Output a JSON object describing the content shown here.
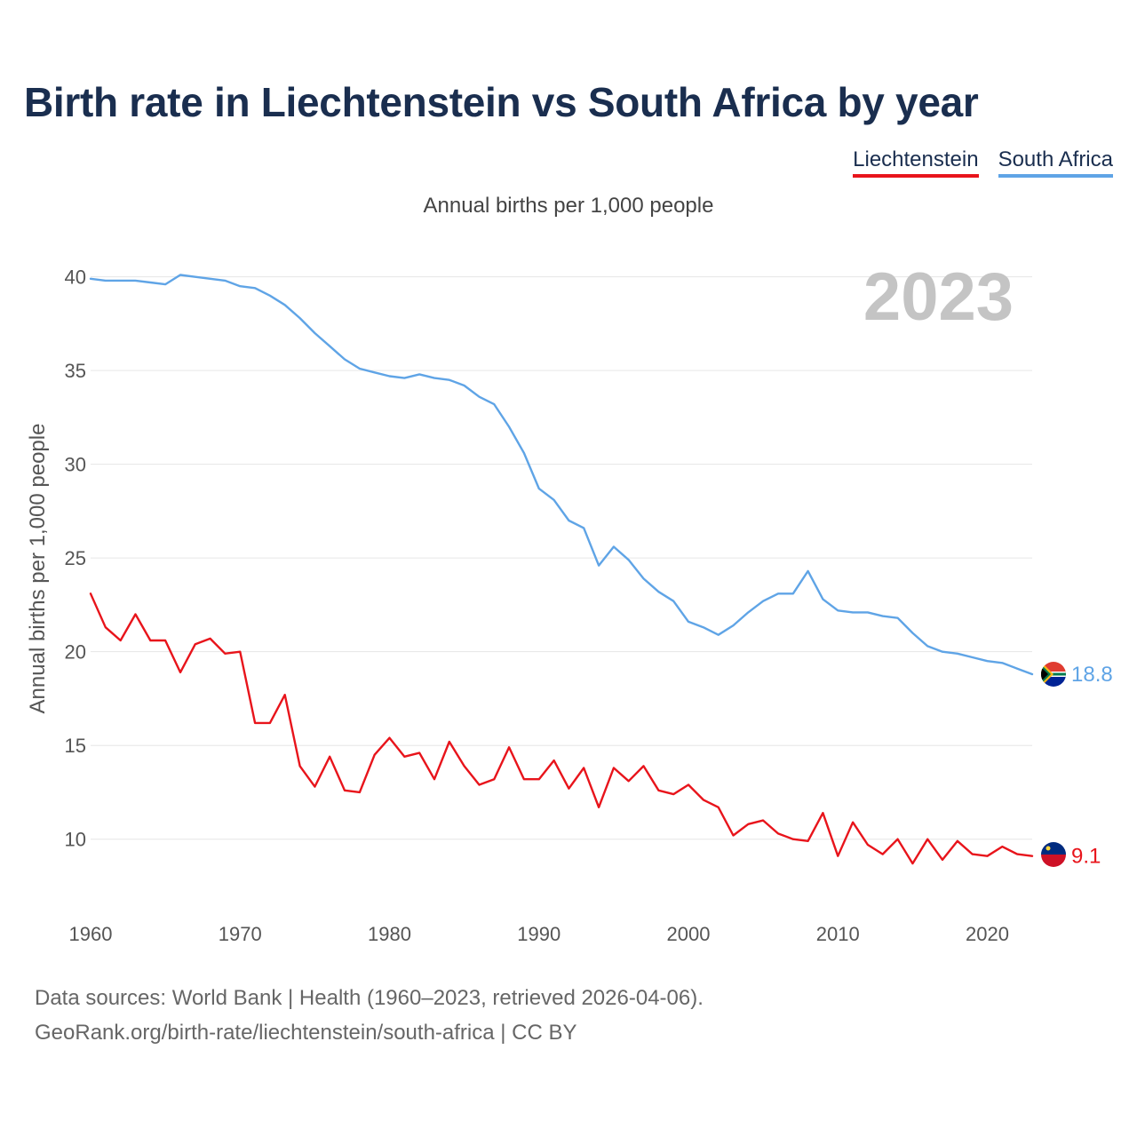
{
  "header": {
    "title": "Birth rate in Liechtenstein vs South Africa by year",
    "subtitle": "Annual births per 1,000 people"
  },
  "legend": {
    "items": [
      {
        "label": "Liechtenstein",
        "color": "#e8141b"
      },
      {
        "label": "South Africa",
        "color": "#5fa4e6"
      }
    ]
  },
  "footer": {
    "line1": "Data sources: World Bank | Health (1960–2023, retrieved 2026-04-06).",
    "line2": "GeoRank.org/birth-rate/liechtenstein/south-africa | CC BY"
  },
  "chart_data": {
    "type": "line",
    "title": "Birth rate in Liechtenstein vs South Africa by year",
    "subtitle": "Annual births per 1,000 people",
    "ylabel": "Annual births per 1,000 people",
    "xlabel": "",
    "year_label": "2023",
    "xlim": [
      1960,
      2023
    ],
    "ylim": [
      7,
      41.5
    ],
    "x_ticks": [
      1960,
      1970,
      1980,
      1990,
      2000,
      2010,
      2020
    ],
    "y_ticks": [
      10,
      15,
      20,
      25,
      30,
      35,
      40
    ],
    "grid": true,
    "legend_position": "top-right",
    "x": [
      1960,
      1961,
      1962,
      1963,
      1964,
      1965,
      1966,
      1967,
      1968,
      1969,
      1970,
      1971,
      1972,
      1973,
      1974,
      1975,
      1976,
      1977,
      1978,
      1979,
      1980,
      1981,
      1982,
      1983,
      1984,
      1985,
      1986,
      1987,
      1988,
      1989,
      1990,
      1991,
      1992,
      1993,
      1994,
      1995,
      1996,
      1997,
      1998,
      1999,
      2000,
      2001,
      2002,
      2003,
      2004,
      2005,
      2006,
      2007,
      2008,
      2009,
      2010,
      2011,
      2012,
      2013,
      2014,
      2015,
      2016,
      2017,
      2018,
      2019,
      2020,
      2021,
      2022,
      2023
    ],
    "series": [
      {
        "name": "South Africa",
        "color": "#5fa4e6",
        "end_label": "18.8",
        "flag": "south-africa",
        "values": [
          39.9,
          39.8,
          39.8,
          39.8,
          39.7,
          39.6,
          40.1,
          40.0,
          39.9,
          39.8,
          39.5,
          39.4,
          39.0,
          38.5,
          37.8,
          37.0,
          36.3,
          35.6,
          35.1,
          34.9,
          34.7,
          34.6,
          34.8,
          34.6,
          34.5,
          34.2,
          33.6,
          33.2,
          32.0,
          30.6,
          28.7,
          28.1,
          27.0,
          26.6,
          24.6,
          25.6,
          24.9,
          23.9,
          23.2,
          22.7,
          21.6,
          21.3,
          20.9,
          21.4,
          22.1,
          22.7,
          23.1,
          23.1,
          24.3,
          22.8,
          22.2,
          22.1,
          22.1,
          21.9,
          21.8,
          21.0,
          20.3,
          20.0,
          19.9,
          19.7,
          19.5,
          19.4,
          19.1,
          18.8
        ]
      },
      {
        "name": "Liechtenstein",
        "color": "#e8141b",
        "end_label": "9.1",
        "flag": "liechtenstein",
        "values": [
          23.1,
          21.3,
          20.6,
          22.0,
          20.6,
          20.6,
          18.9,
          20.4,
          20.7,
          19.9,
          20.0,
          16.2,
          16.2,
          17.7,
          13.9,
          12.8,
          14.4,
          12.6,
          12.5,
          14.5,
          15.4,
          14.4,
          14.6,
          13.2,
          15.2,
          13.9,
          12.9,
          13.2,
          14.9,
          13.2,
          13.2,
          14.2,
          12.7,
          13.8,
          11.7,
          13.8,
          13.1,
          13.9,
          12.6,
          12.4,
          12.9,
          12.1,
          11.7,
          10.2,
          10.8,
          11.0,
          10.3,
          10.0,
          9.9,
          11.4,
          9.1,
          10.9,
          9.7,
          9.2,
          10.0,
          8.7,
          10.0,
          8.9,
          9.9,
          9.2,
          9.1,
          9.6,
          9.2,
          9.1
        ]
      }
    ]
  }
}
